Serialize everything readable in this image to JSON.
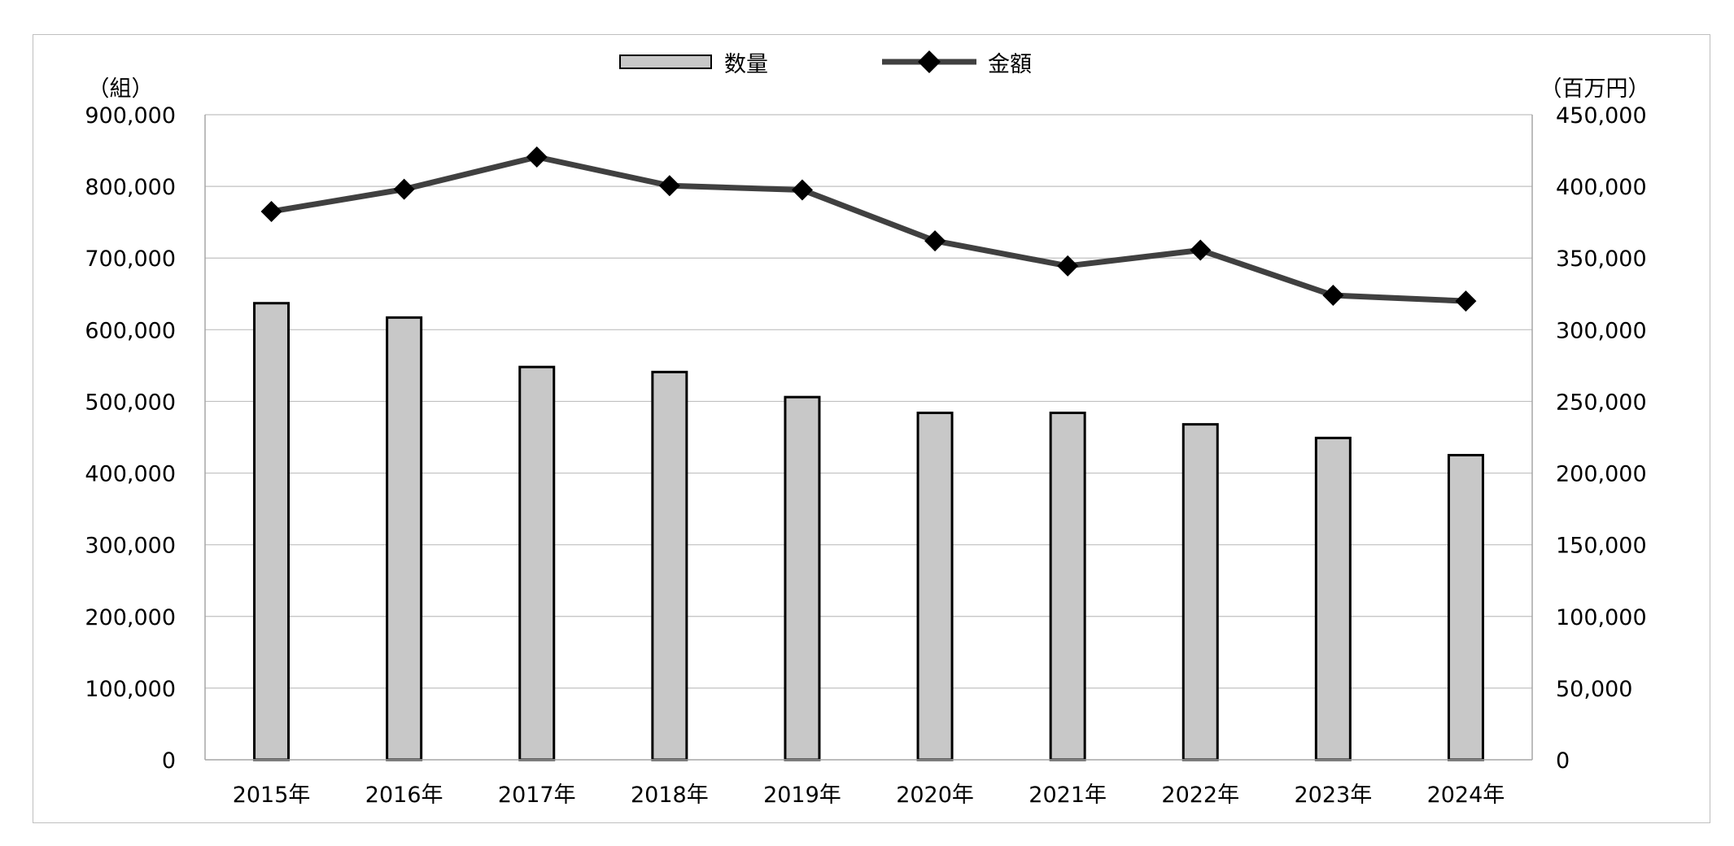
{
  "chart_data": {
    "type": "bar",
    "categories": [
      "2015年",
      "2016年",
      "2017年",
      "2018年",
      "2019年",
      "2020年",
      "2021年",
      "2022年",
      "2023年",
      "2024年"
    ],
    "series": [
      {
        "name": "数量",
        "type": "bar",
        "axis": "left",
        "values": [
          637000,
          617000,
          548000,
          541000,
          506000,
          484000,
          484000,
          468000,
          449000,
          425000
        ]
      },
      {
        "name": "金額",
        "type": "line",
        "axis": "right",
        "values": [
          382500,
          398000,
          420500,
          400500,
          397500,
          362000,
          344500,
          355500,
          324000,
          320000
        ]
      }
    ],
    "y_left": {
      "unit": "（組）",
      "lim": [
        0,
        900000
      ],
      "ticks": [
        "0",
        "100,000",
        "200,000",
        "300,000",
        "400,000",
        "500,000",
        "600,000",
        "700,000",
        "800,000",
        "900,000"
      ]
    },
    "y_right": {
      "unit": "（百万円）",
      "lim": [
        0,
        450000
      ],
      "ticks": [
        "0",
        "50,000",
        "100,000",
        "150,000",
        "200,000",
        "250,000",
        "300,000",
        "350,000",
        "400,000",
        "450,000"
      ]
    },
    "grid": true,
    "legend": "top-center",
    "colors": {
      "bar_fill": "#c8c8c8",
      "bar_stroke": "#000000",
      "line": "#404040",
      "marker": "#000000",
      "grid": "#c0c0c0"
    }
  }
}
